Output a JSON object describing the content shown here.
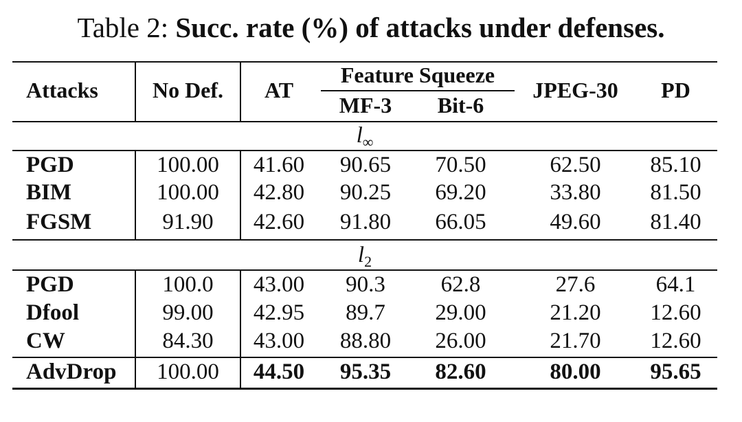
{
  "caption": {
    "prefix": "Table 2:",
    "title": "Succ. rate (%) of attacks under defenses."
  },
  "header": {
    "attacks": "Attacks",
    "no_def": "No Def.",
    "at": "AT",
    "feature_squeeze": "Feature Squeeze",
    "mf3": "MF-3",
    "bit6": "Bit-6",
    "jpeg30": "JPEG-30",
    "pd": "PD"
  },
  "sections": {
    "linf": {
      "symbol": "l",
      "subscript": "∞"
    },
    "l2": {
      "symbol": "l",
      "subscript": "2"
    }
  },
  "rows": [
    {
      "attack": "PGD",
      "no_def": "100.00",
      "at": "41.60",
      "mf3": "90.65",
      "bit6": "70.50",
      "jpeg30": "62.50",
      "pd": "85.10"
    },
    {
      "attack": "BIM",
      "no_def": "100.00",
      "at": "42.80",
      "mf3": "90.25",
      "bit6": "69.20",
      "jpeg30": "33.80",
      "pd": "81.50"
    },
    {
      "attack": "FGSM",
      "no_def": "91.90",
      "at": "42.60",
      "mf3": "91.80",
      "bit6": "66.05",
      "jpeg30": "49.60",
      "pd": "81.40"
    },
    {
      "attack": "PGD",
      "no_def": "100.0",
      "at": "43.00",
      "mf3": "90.3",
      "bit6": "62.8",
      "jpeg30": "27.6",
      "pd": "64.1"
    },
    {
      "attack": "Dfool",
      "no_def": "99.00",
      "at": "42.95",
      "mf3": "89.7",
      "bit6": "29.00",
      "jpeg30": "21.20",
      "pd": "12.60"
    },
    {
      "attack": "CW",
      "no_def": "84.30",
      "at": "43.00",
      "mf3": "88.80",
      "bit6": "26.00",
      "jpeg30": "21.70",
      "pd": "12.60"
    },
    {
      "attack": "AdvDrop",
      "no_def": "100.00",
      "at": "44.50",
      "mf3": "95.35",
      "bit6": "82.60",
      "jpeg30": "80.00",
      "pd": "95.65"
    }
  ]
}
